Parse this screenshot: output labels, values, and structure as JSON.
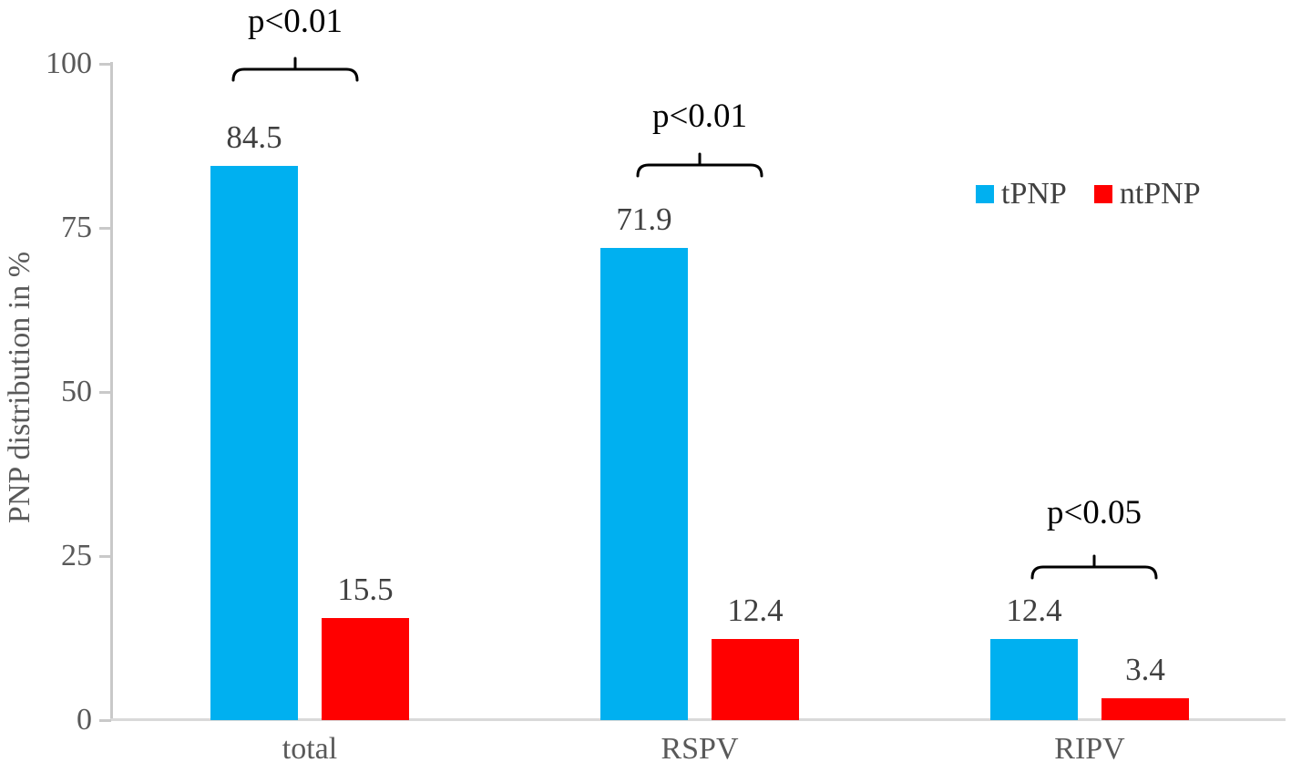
{
  "chart_data": {
    "type": "bar",
    "title": "",
    "ylabel": "PNP distribution in %",
    "xlabel": "",
    "ylim": [
      0,
      100
    ],
    "yticks": [
      0,
      25,
      50,
      75,
      100
    ],
    "grid": false,
    "legend_position": "upper right",
    "categories": [
      "total",
      "RSPV",
      "RIPV"
    ],
    "series": [
      {
        "name": "tPNP",
        "color": "#00B0F0",
        "values": [
          84.5,
          71.9,
          12.4
        ]
      },
      {
        "name": "ntPNP",
        "color": "#FF0000",
        "values": [
          15.5,
          12.4,
          3.4
        ]
      }
    ],
    "annotations": [
      {
        "category": "total",
        "text": "p<0.01"
      },
      {
        "category": "RSPV",
        "text": "p<0.01"
      },
      {
        "category": "RIPV",
        "text": "p<0.05"
      }
    ]
  }
}
